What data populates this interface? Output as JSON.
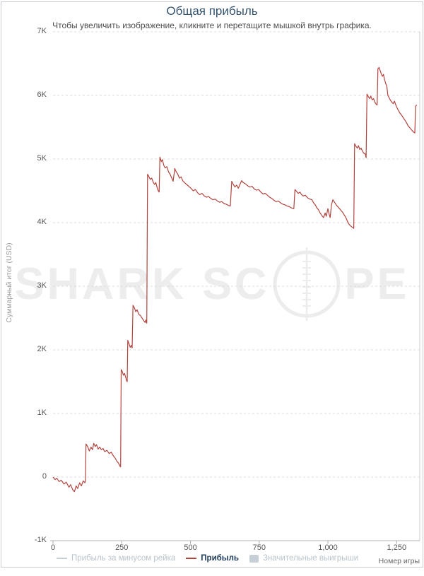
{
  "page": {
    "title": "Общая прибыль",
    "subtitle": "Чтобы увеличить изображение, кликните и перетащите мышкой внутрь графика."
  },
  "watermark": {
    "left": "SHARK SC",
    "right": "PE"
  },
  "chart_data": {
    "type": "line",
    "title": "Общая прибыль",
    "xlabel": "Номер игры",
    "ylabel": "Суммарный итог (USD)",
    "xlim": [
      0,
      1337
    ],
    "ylim": [
      -1000,
      7000
    ],
    "grid": "horizontal-dashed",
    "legend_position": "bottom",
    "y_ticks": [
      {
        "label": "7K",
        "value": 7000
      },
      {
        "label": "6K",
        "value": 6000
      },
      {
        "label": "5K",
        "value": 5000
      },
      {
        "label": "4K",
        "value": 4000
      },
      {
        "label": "3K",
        "value": 3000
      },
      {
        "label": "2K",
        "value": 2000
      },
      {
        "label": "1K",
        "value": 1000
      },
      {
        "label": "0",
        "value": 0
      },
      {
        "label": "-1K",
        "value": -1000
      }
    ],
    "x_ticks": [
      {
        "label": "0",
        "value": 0
      },
      {
        "label": "250",
        "value": 250
      },
      {
        "label": "500",
        "value": 500
      },
      {
        "label": "750",
        "value": 750
      },
      {
        "label": "1,000",
        "value": 1000
      },
      {
        "label": "1,250",
        "value": 1250
      }
    ],
    "legend": [
      {
        "label": "Прибыль за минусом рейка",
        "swatch": "line",
        "color": "#c8ced3",
        "text_color": "#b9c4cc",
        "bold": false
      },
      {
        "label": "Прибыль",
        "swatch": "line",
        "color": "#b2443e",
        "text_color": "#1e3c5c",
        "bold": true
      },
      {
        "label": "Значительные выигрыши",
        "swatch": "box",
        "color": "#c6ced6",
        "text_color": "#b9c4cc",
        "bold": false
      }
    ],
    "series": [
      {
        "name": "Прибыль",
        "color": "#b2443e",
        "points": [
          [
            0,
            0
          ],
          [
            8,
            -40
          ],
          [
            14,
            -20
          ],
          [
            22,
            -70
          ],
          [
            30,
            -50
          ],
          [
            40,
            -110
          ],
          [
            48,
            -80
          ],
          [
            58,
            -160
          ],
          [
            64,
            -120
          ],
          [
            72,
            -200
          ],
          [
            78,
            -230
          ],
          [
            84,
            -140
          ],
          [
            90,
            -180
          ],
          [
            97,
            -90
          ],
          [
            103,
            -140
          ],
          [
            110,
            -60
          ],
          [
            116,
            -90
          ],
          [
            118,
            -60
          ],
          [
            120,
            520
          ],
          [
            126,
            480
          ],
          [
            132,
            410
          ],
          [
            138,
            470
          ],
          [
            144,
            430
          ],
          [
            148,
            530
          ],
          [
            154,
            480
          ],
          [
            158,
            510
          ],
          [
            164,
            440
          ],
          [
            170,
            470
          ],
          [
            176,
            430
          ],
          [
            182,
            450
          ],
          [
            188,
            400
          ],
          [
            196,
            420
          ],
          [
            204,
            370
          ],
          [
            212,
            390
          ],
          [
            220,
            330
          ],
          [
            226,
            300
          ],
          [
            232,
            250
          ],
          [
            238,
            220
          ],
          [
            244,
            170
          ],
          [
            246,
            160
          ],
          [
            248,
            1690
          ],
          [
            252,
            1660
          ],
          [
            256,
            1600
          ],
          [
            260,
            1630
          ],
          [
            265,
            1560
          ],
          [
            268,
            1510
          ],
          [
            270,
            1500
          ],
          [
            272,
            2150
          ],
          [
            276,
            2100
          ],
          [
            281,
            2040
          ],
          [
            285,
            2070
          ],
          [
            288,
            2030
          ],
          [
            291,
            2700
          ],
          [
            296,
            2660
          ],
          [
            301,
            2600
          ],
          [
            306,
            2630
          ],
          [
            312,
            2560
          ],
          [
            318,
            2540
          ],
          [
            324,
            2500
          ],
          [
            330,
            2460
          ],
          [
            335,
            2430
          ],
          [
            338,
            2470
          ],
          [
            341,
            2420
          ],
          [
            344,
            4760
          ],
          [
            349,
            4720
          ],
          [
            354,
            4680
          ],
          [
            359,
            4700
          ],
          [
            364,
            4640
          ],
          [
            369,
            4600
          ],
          [
            374,
            4630
          ],
          [
            379,
            4550
          ],
          [
            383,
            4500
          ],
          [
            386,
            4480
          ],
          [
            389,
            5030
          ],
          [
            394,
            4960
          ],
          [
            398,
            4990
          ],
          [
            403,
            4900
          ],
          [
            408,
            4860
          ],
          [
            414,
            4880
          ],
          [
            420,
            4800
          ],
          [
            426,
            4760
          ],
          [
            432,
            4700
          ],
          [
            437,
            4650
          ],
          [
            443,
            4850
          ],
          [
            448,
            4800
          ],
          [
            454,
            4760
          ],
          [
            460,
            4700
          ],
          [
            466,
            4720
          ],
          [
            472,
            4660
          ],
          [
            478,
            4630
          ],
          [
            486,
            4600
          ],
          [
            494,
            4570
          ],
          [
            502,
            4540
          ],
          [
            510,
            4500
          ],
          [
            518,
            4520
          ],
          [
            526,
            4470
          ],
          [
            534,
            4440
          ],
          [
            542,
            4460
          ],
          [
            550,
            4420
          ],
          [
            558,
            4400
          ],
          [
            566,
            4410
          ],
          [
            574,
            4380
          ],
          [
            582,
            4360
          ],
          [
            590,
            4370
          ],
          [
            598,
            4340
          ],
          [
            606,
            4320
          ],
          [
            614,
            4330
          ],
          [
            622,
            4300
          ],
          [
            630,
            4290
          ],
          [
            638,
            4270
          ],
          [
            645,
            4260
          ],
          [
            650,
            4650
          ],
          [
            656,
            4600
          ],
          [
            662,
            4560
          ],
          [
            668,
            4590
          ],
          [
            674,
            4540
          ],
          [
            680,
            4600
          ],
          [
            686,
            4660
          ],
          [
            692,
            4630
          ],
          [
            700,
            4610
          ],
          [
            708,
            4580
          ],
          [
            716,
            4560
          ],
          [
            724,
            4570
          ],
          [
            732,
            4530
          ],
          [
            740,
            4510
          ],
          [
            748,
            4520
          ],
          [
            756,
            4480
          ],
          [
            764,
            4450
          ],
          [
            772,
            4460
          ],
          [
            780,
            4430
          ],
          [
            788,
            4400
          ],
          [
            796,
            4380
          ],
          [
            804,
            4350
          ],
          [
            812,
            4330
          ],
          [
            820,
            4340
          ],
          [
            828,
            4310
          ],
          [
            836,
            4290
          ],
          [
            844,
            4280
          ],
          [
            852,
            4260
          ],
          [
            860,
            4250
          ],
          [
            868,
            4230
          ],
          [
            876,
            4220
          ],
          [
            880,
            4520
          ],
          [
            886,
            4490
          ],
          [
            892,
            4460
          ],
          [
            898,
            4480
          ],
          [
            904,
            4440
          ],
          [
            910,
            4420
          ],
          [
            918,
            4430
          ],
          [
            926,
            4390
          ],
          [
            934,
            4370
          ],
          [
            942,
            4360
          ],
          [
            948,
            4310
          ],
          [
            954,
            4280
          ],
          [
            960,
            4230
          ],
          [
            966,
            4200
          ],
          [
            972,
            4150
          ],
          [
            978,
            4110
          ],
          [
            984,
            4080
          ],
          [
            990,
            4150
          ],
          [
            994,
            4100
          ],
          [
            1000,
            4220
          ],
          [
            1004,
            4140
          ],
          [
            1008,
            4080
          ],
          [
            1013,
            4280
          ],
          [
            1018,
            4360
          ],
          [
            1024,
            4320
          ],
          [
            1030,
            4280
          ],
          [
            1036,
            4250
          ],
          [
            1042,
            4220
          ],
          [
            1048,
            4190
          ],
          [
            1054,
            4160
          ],
          [
            1058,
            4130
          ],
          [
            1064,
            4090
          ],
          [
            1070,
            4030
          ],
          [
            1076,
            3980
          ],
          [
            1082,
            3950
          ],
          [
            1088,
            3930
          ],
          [
            1094,
            3910
          ],
          [
            1097,
            5240
          ],
          [
            1102,
            5200
          ],
          [
            1107,
            5170
          ],
          [
            1111,
            5210
          ],
          [
            1116,
            5150
          ],
          [
            1121,
            5170
          ],
          [
            1126,
            5120
          ],
          [
            1131,
            5090
          ],
          [
            1136,
            5080
          ],
          [
            1139,
            5020
          ],
          [
            1142,
            6020
          ],
          [
            1147,
            5980
          ],
          [
            1152,
            5950
          ],
          [
            1156,
            5990
          ],
          [
            1161,
            5930
          ],
          [
            1166,
            5950
          ],
          [
            1171,
            5890
          ],
          [
            1176,
            5860
          ],
          [
            1179,
            5850
          ],
          [
            1182,
            6420
          ],
          [
            1186,
            6440
          ],
          [
            1190,
            6390
          ],
          [
            1194,
            6340
          ],
          [
            1198,
            6300
          ],
          [
            1202,
            6330
          ],
          [
            1206,
            6250
          ],
          [
            1210,
            6190
          ],
          [
            1214,
            6150
          ],
          [
            1218,
            6000
          ],
          [
            1223,
            5960
          ],
          [
            1228,
            5920
          ],
          [
            1233,
            5890
          ],
          [
            1238,
            5870
          ],
          [
            1242,
            5910
          ],
          [
            1247,
            5850
          ],
          [
            1252,
            5800
          ],
          [
            1257,
            5760
          ],
          [
            1262,
            5720
          ],
          [
            1268,
            5690
          ],
          [
            1274,
            5650
          ],
          [
            1280,
            5610
          ],
          [
            1286,
            5570
          ],
          [
            1292,
            5520
          ],
          [
            1298,
            5490
          ],
          [
            1304,
            5460
          ],
          [
            1310,
            5430
          ],
          [
            1316,
            5410
          ],
          [
            1319,
            5830
          ],
          [
            1323,
            5850
          ]
        ]
      }
    ]
  }
}
